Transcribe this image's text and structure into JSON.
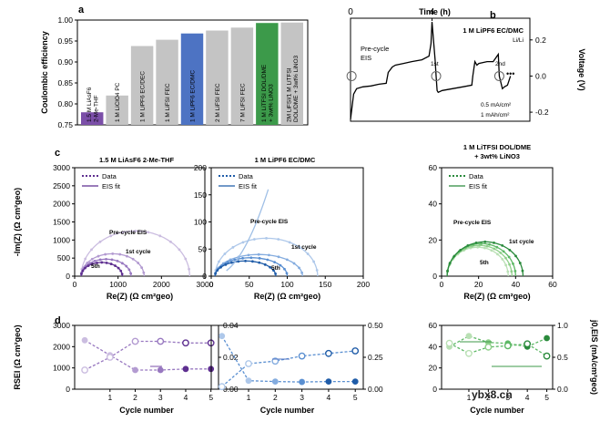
{
  "panel_labels": {
    "a": "a",
    "b": "b",
    "c": "c",
    "d": "d"
  },
  "watermark": "ybx8.cn",
  "chart_data": [
    {
      "id": "a",
      "type": "bar",
      "ylabel": "Coulombic efficiency",
      "ylim": [
        0.75,
        1.0
      ],
      "yticks": [
        "0.75",
        "0.80",
        "0.85",
        "0.90",
        "0.95",
        "1.00"
      ],
      "yticks_num": [
        0.75,
        0.8,
        0.85,
        0.9,
        0.95,
        1.0
      ],
      "categories": [
        "1.5 M LiAsF6 2-Me-THF",
        "1 M LiClO4 PC",
        "1 M LiPF6 EC/DEC",
        "1 M LiFSI FEC",
        "1 M LiPF6 EC/DMC",
        "2 M LiFSI FEC",
        "7 M LiFSI FEC",
        "1 M LiTFSI DOL/DME + 3wt% LiNO3",
        "2M LiFSI/1 M LiTFSI DOL/DME + 3wt% LiNO3"
      ],
      "values": [
        0.78,
        0.82,
        0.938,
        0.953,
        0.968,
        0.975,
        0.982,
        0.993,
        0.994
      ],
      "colors": [
        "#7b4fa8",
        "#c4c4c4",
        "#c4c4c4",
        "#c4c4c4",
        "#4d73c3",
        "#c4c4c4",
        "#c4c4c4",
        "#3c9a4a",
        "#c4c4c4"
      ],
      "label_colors": [
        "#7b4fa8",
        "#222222",
        "#222222",
        "#222222",
        "#ffffff",
        "#222222",
        "#222222",
        "#ffffff",
        "#222222"
      ],
      "label_lines": [
        [
          "1.5 M LiAsF6",
          "2-Me-THF"
        ],
        [
          "1 M LiClO4 PC"
        ],
        [
          "1 M LiPF6 EC/DEC"
        ],
        [
          "1 M LiFSI FEC"
        ],
        [
          "1 M LiPF6 EC/DMC"
        ],
        [
          "2 M LiFSI FEC"
        ],
        [
          "7 M LiFSI FEC"
        ],
        [
          "1 M LiTFSI DOL/DME",
          "+ 3wt% LiNO3"
        ],
        [
          "2M LiFSI/1 M LiTFSI",
          "DOL/DME + 3wt% LiNO3"
        ]
      ]
    },
    {
      "id": "b",
      "type": "line",
      "xlabel": "Time (h)",
      "ylabel": "Voltage (V)",
      "xticks": [
        "0",
        "4"
      ],
      "xticks_num": [
        0,
        4
      ],
      "xlim": [
        0,
        8.8
      ],
      "ylim": [
        -0.25,
        0.32
      ],
      "yticks": [
        "0.2",
        "0.0",
        "-0.2"
      ],
      "yticks_num": [
        0.2,
        0.0,
        -0.2
      ],
      "series_name": "1 M LiPF6 EC/DMC",
      "series_subtitle": "Li/Li",
      "annotations": [
        "Pre-cycle EIS",
        "1st",
        "2nd",
        "0.5 mA/cm²",
        "1 mAh/cm²"
      ],
      "ellipsis": "•••",
      "x": [
        0,
        0.15,
        0.3,
        0.6,
        1.0,
        1.4,
        1.75,
        1.85,
        2.05,
        2.2,
        2.6,
        3.0,
        3.5,
        3.85,
        3.95,
        4.0,
        4.15,
        4.2,
        4.25,
        4.3,
        4.5,
        5.0,
        5.5,
        5.95,
        6.0,
        6.1,
        6.2,
        6.3,
        6.7,
        7.0,
        7.25,
        7.3,
        7.45,
        7.55,
        7.7,
        7.85
      ],
      "y": [
        -0.24,
        -0.1,
        -0.07,
        -0.06,
        -0.055,
        -0.045,
        -0.04,
        0.02,
        0.05,
        0.06,
        0.07,
        0.08,
        0.09,
        0.11,
        0.18,
        0.3,
        0.09,
        0.0,
        -0.08,
        -0.09,
        -0.08,
        -0.07,
        -0.06,
        -0.05,
        0.0,
        0.08,
        0.06,
        0.07,
        0.08,
        0.08,
        0.12,
        0.0,
        -0.07,
        -0.06,
        -0.05,
        0.0
      ]
    },
    {
      "id": "c1",
      "type": "scatter",
      "title": "1.5 M LiAsF6 2-Me-THF",
      "xlabel": "Re(Z) (Ω cm²geo)",
      "ylabel": "-Im(Z) (Ω cm²geo)",
      "xlim": [
        0,
        3000
      ],
      "ylim": [
        0,
        3000
      ],
      "xticks": [
        "0",
        "1000",
        "2000",
        "3000"
      ],
      "xticks_num": [
        0,
        1000,
        2000,
        3000
      ],
      "yticks": [
        "0",
        "500",
        "1000",
        "1500",
        "2000",
        "2500",
        "3000"
      ],
      "yticks_num": [
        0,
        500,
        1000,
        1500,
        2000,
        2500,
        3000
      ],
      "legend": [
        "Data",
        "EIS fit"
      ],
      "annotations": [
        "Pre-cycle EIS",
        "1st cycle",
        "5th"
      ],
      "arcs": [
        {
          "name": "Pre-cycle",
          "x0": 150,
          "x1": 2650,
          "peak": 1250,
          "color": "#cbbde0"
        },
        {
          "name": "1st",
          "x0": 150,
          "x1": 1600,
          "peak": 620,
          "color": "#b39bd1"
        },
        {
          "name": "2nd",
          "x0": 150,
          "x1": 1300,
          "peak": 470,
          "color": "#9878c0"
        },
        {
          "name": "5th",
          "x0": 150,
          "x1": 1100,
          "peak": 380,
          "color": "#5e2f90"
        }
      ]
    },
    {
      "id": "c2",
      "type": "scatter",
      "title": "1 M LiPF6 EC/DMC",
      "xlabel": "Re(Z) (Ω cm²geo)",
      "xlim": [
        0,
        200
      ],
      "ylim": [
        0,
        200
      ],
      "xticks": [
        "0",
        "50",
        "100",
        "150",
        "200"
      ],
      "xticks_num": [
        0,
        50,
        100,
        150,
        200
      ],
      "yticks": [
        "0",
        "50",
        "100",
        "150",
        "200"
      ],
      "yticks_num": [
        0,
        50,
        100,
        150,
        200
      ],
      "legend": [
        "Data",
        "EIS fit"
      ],
      "annotations": [
        "Pre-cycle EIS",
        "1st cycle",
        "5th"
      ],
      "arcs": [
        {
          "name": "Pre-cycle",
          "x0": 5,
          "x1": 140,
          "peak": 70,
          "color": "#aec8ea"
        },
        {
          "name": "1st",
          "x0": 5,
          "x1": 120,
          "peak": 40,
          "color": "#84acdf"
        },
        {
          "name": "2nd",
          "x0": 5,
          "x1": 100,
          "peak": 34,
          "color": "#5a8fd1"
        },
        {
          "name": "5th",
          "x0": 5,
          "x1": 85,
          "peak": 28,
          "color": "#1f5ca8"
        }
      ],
      "tail": {
        "x0": 20,
        "x1": 75,
        "y1": 160,
        "color": "#9fbfe6"
      }
    },
    {
      "id": "c3",
      "type": "scatter",
      "title": "1 M LiTFSI DOL/DME + 3wt% LiNO3",
      "xlabel": "Re(Z) (Ω cm²geo)",
      "xlim": [
        0,
        60
      ],
      "ylim": [
        0,
        60
      ],
      "xticks": [
        "0",
        "20",
        "40",
        "60"
      ],
      "xticks_num": [
        0,
        20,
        40,
        60
      ],
      "yticks": [
        "0",
        "20",
        "40",
        "60"
      ],
      "yticks_num": [
        0,
        20,
        40,
        60
      ],
      "legend": [
        "Data",
        "EIS fit"
      ],
      "annotations": [
        "Pre-cycle EIS",
        "1st cycle",
        "5th"
      ],
      "arcs": [
        {
          "name": "Pre-cycle",
          "x0": 3,
          "x1": 36,
          "peak": 16,
          "color": "#b9e0b4"
        },
        {
          "name": "1st",
          "x0": 3,
          "x1": 38,
          "peak": 17,
          "color": "#8fcf8a"
        },
        {
          "name": "2nd",
          "x0": 3,
          "x1": 40,
          "peak": 18,
          "color": "#5db865"
        },
        {
          "name": "5th",
          "x0": 3,
          "x1": 44,
          "peak": 19,
          "color": "#2a8a3c"
        }
      ]
    },
    {
      "id": "d1",
      "type": "line",
      "xlabel": "Cycle number",
      "ylabel": "RSEI (Ω cm²geo)",
      "xticks": [
        "1",
        "2",
        "3",
        "4",
        "5"
      ],
      "xticks_num": [
        1,
        2,
        3,
        4,
        5
      ],
      "xlim": [
        -0.4,
        5.3
      ],
      "ylim": [
        0,
        3000
      ],
      "yticks": [
        "0",
        "1000",
        "2000",
        "3000"
      ],
      "yticks_num": [
        0,
        1000,
        2000,
        3000
      ],
      "y2lim": [
        0,
        0.04
      ],
      "y2ticks": [
        "0.00",
        "0.02",
        "0.04"
      ],
      "y2ticks_num": [
        0,
        0.02,
        0.04
      ],
      "colors": [
        "#cbbde0",
        "#b39bd1",
        "#9878c0",
        "#5e2f90"
      ],
      "x": [
        0,
        1,
        2,
        3,
        4,
        5
      ],
      "series": [
        {
          "name": "RSEI",
          "axis": "left",
          "values": [
            2300,
            1600,
            900,
            900,
            950,
            950
          ]
        },
        {
          "name": "j0,EIS",
          "axis": "right",
          "values": [
            0.012,
            0.02,
            0.03,
            0.03,
            0.029,
            0.029
          ]
        }
      ]
    },
    {
      "id": "d2",
      "type": "line",
      "xlabel": "Cycle number",
      "xticks": [
        "1",
        "2",
        "3",
        "4",
        "5"
      ],
      "xticks_num": [
        1,
        2,
        3,
        4,
        5
      ],
      "xlim": [
        -0.4,
        5.3
      ],
      "ylim": [
        0,
        150
      ],
      "y2lim": [
        0,
        0.5
      ],
      "y2ticks": [
        "0.00",
        "0.25",
        "0.50"
      ],
      "y2ticks_num": [
        0,
        0.25,
        0.5
      ],
      "colors": [
        "#aec8ea",
        "#84acdf",
        "#5a8fd1",
        "#1f5ca8"
      ],
      "x": [
        0,
        1,
        2,
        3,
        4,
        5
      ],
      "series": [
        {
          "name": "RSEI",
          "axis": "left",
          "values": [
            125,
            20,
            18,
            17,
            18,
            18
          ]
        },
        {
          "name": "j0,EIS",
          "axis": "right",
          "values": [
            0.02,
            0.2,
            0.22,
            0.26,
            0.28,
            0.3
          ]
        }
      ]
    },
    {
      "id": "d3",
      "type": "line",
      "xlabel": "Cycle number",
      "ylabel_right": "j0,EIS (mA/cm²geo)",
      "xticks": [
        "1",
        "2",
        "3",
        "4",
        "5"
      ],
      "xticks_num": [
        1,
        2,
        3,
        4,
        5
      ],
      "xlim": [
        -0.4,
        5.3
      ],
      "ylim": [
        0,
        60
      ],
      "yticks": [
        "0",
        "20",
        "40",
        "60"
      ],
      "yticks_num": [
        0,
        20,
        40,
        60
      ],
      "y2lim": [
        0,
        1.0
      ],
      "y2ticks": [
        "0.0",
        "0.5",
        "1.0"
      ],
      "y2ticks_num": [
        0,
        0.5,
        1.0
      ],
      "colors": [
        "#b9e0b4",
        "#8fcf8a",
        "#5db865",
        "#2a8a3c"
      ],
      "x": [
        0,
        1,
        2,
        3,
        4,
        5
      ],
      "series": [
        {
          "name": "RSEI",
          "axis": "left",
          "values": [
            40,
            50,
            44,
            43,
            40,
            48
          ]
        },
        {
          "name": "j0,EIS",
          "axis": "right",
          "values": [
            0.72,
            0.56,
            0.66,
            0.68,
            0.71,
            0.52
          ]
        }
      ]
    }
  ]
}
